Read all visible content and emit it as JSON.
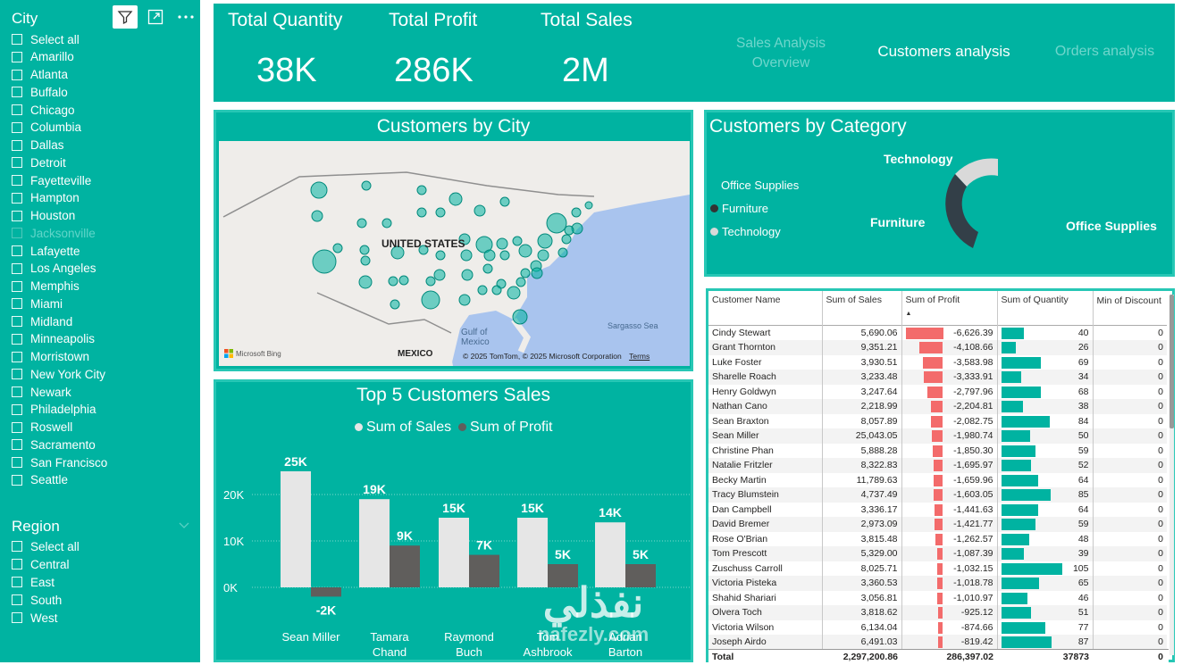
{
  "slicer_city": {
    "title": "City",
    "items": [
      "Select all",
      "Amarillo",
      "Atlanta",
      "Buffalo",
      "Chicago",
      "Columbia",
      "Dallas",
      "Detroit",
      "Fayetteville",
      "Hampton",
      "Houston",
      "Jacksonville",
      "Lafayette",
      "Los Angeles",
      "Memphis",
      "Miami",
      "Midland",
      "Minneapolis",
      "Morristown",
      "New York City",
      "Newark",
      "Philadelphia",
      "Roswell",
      "Sacramento",
      "San Francisco",
      "Seattle"
    ],
    "dimmed_item": "Jacksonville"
  },
  "slicer_region": {
    "title": "Region",
    "items": [
      "Select all",
      "Central",
      "East",
      "South",
      "West"
    ]
  },
  "kpis": [
    {
      "label": "Total Quantity",
      "value": "38K"
    },
    {
      "label": "Total Profit",
      "value": "286K"
    },
    {
      "label": "Total Sales",
      "value": "2M"
    }
  ],
  "nav": {
    "sales_overview_1": "Sales Analysis",
    "sales_overview_2": "Overview",
    "customers": "Customers analysis",
    "orders": "Orders analysis"
  },
  "map": {
    "title": "Customers by City",
    "country_label": "UNITED STATES",
    "mexico_label": "MEXICO",
    "gulf_label_1": "Gulf of",
    "gulf_label_2": "Mexico",
    "sargasso_label": "Sargasso Sea",
    "attribution": "© 2025 TomTom, © 2025 Microsoft Corporation",
    "terms": "Terms",
    "bing": "Microsoft Bing"
  },
  "donut": {
    "title": "Customers by Category",
    "legend": [
      "Office Supplies",
      "Furniture",
      "Technology"
    ],
    "labels": {
      "technology": "Technology",
      "furniture": "Furniture",
      "office": "Office Supplies"
    }
  },
  "colors": {
    "teal": "#00b3a1",
    "sales_bar": "#e6e6e6",
    "profit_bar": "#605e5c",
    "neg_bar": "#f36b6b"
  },
  "chart_data": {
    "type": "bar",
    "title": "Top 5 Customers Sales",
    "categories": [
      "Sean Miller",
      "Tamara Chand",
      "Raymond Buch",
      "Tom Ashbrook",
      "Adrian Barton"
    ],
    "category_lines": [
      [
        "Sean Miller"
      ],
      [
        "Tamara",
        "Chand"
      ],
      [
        "Raymond",
        "Buch"
      ],
      [
        "Tom",
        "Ashbrook"
      ],
      [
        "Adrian",
        "Barton"
      ]
    ],
    "series": [
      {
        "name": "Sum of Sales",
        "values": [
          25000,
          19000,
          15000,
          15000,
          14000
        ],
        "labels": [
          "25K",
          "19K",
          "15K",
          "15K",
          "14K"
        ]
      },
      {
        "name": "Sum of Profit",
        "values": [
          -2000,
          9000,
          7000,
          5000,
          5000
        ],
        "labels": [
          "-2K",
          "9K",
          "7K",
          "5K",
          "5K"
        ]
      }
    ],
    "yticks": [
      "20K",
      "10K",
      "0K"
    ],
    "ylim": [
      -2000,
      25000
    ]
  },
  "table": {
    "headers": [
      "Customer Name",
      "Sum of Sales",
      "Sum of Profit",
      "Sum of Quantity",
      "Min of Discount"
    ],
    "rows": [
      [
        "Cindy Stewart",
        "5,690.06",
        "-6,626.39",
        "40",
        "0"
      ],
      [
        "Grant Thornton",
        "9,351.21",
        "-4,108.66",
        "26",
        "0"
      ],
      [
        "Luke Foster",
        "3,930.51",
        "-3,583.98",
        "69",
        "0"
      ],
      [
        "Sharelle Roach",
        "3,233.48",
        "-3,333.91",
        "34",
        "0"
      ],
      [
        "Henry Goldwyn",
        "3,247.64",
        "-2,797.96",
        "68",
        "0"
      ],
      [
        "Nathan Cano",
        "2,218.99",
        "-2,204.81",
        "38",
        "0"
      ],
      [
        "Sean Braxton",
        "8,057.89",
        "-2,082.75",
        "84",
        "0"
      ],
      [
        "Sean Miller",
        "25,043.05",
        "-1,980.74",
        "50",
        "0"
      ],
      [
        "Christine Phan",
        "5,888.28",
        "-1,850.30",
        "59",
        "0"
      ],
      [
        "Natalie Fritzler",
        "8,322.83",
        "-1,695.97",
        "52",
        "0"
      ],
      [
        "Becky Martin",
        "11,789.63",
        "-1,659.96",
        "64",
        "0"
      ],
      [
        "Tracy Blumstein",
        "4,737.49",
        "-1,603.05",
        "85",
        "0"
      ],
      [
        "Dan Campbell",
        "3,336.17",
        "-1,441.63",
        "64",
        "0"
      ],
      [
        "David Bremer",
        "2,973.09",
        "-1,421.77",
        "59",
        "0"
      ],
      [
        "Rose O'Brian",
        "3,815.48",
        "-1,262.57",
        "48",
        "0"
      ],
      [
        "Tom Prescott",
        "5,329.00",
        "-1,087.39",
        "39",
        "0"
      ],
      [
        "Zuschuss Carroll",
        "8,025.71",
        "-1,032.15",
        "105",
        "0"
      ],
      [
        "Victoria Pisteka",
        "3,360.53",
        "-1,018.78",
        "65",
        "0"
      ],
      [
        "Shahid Shariari",
        "3,056.81",
        "-1,010.97",
        "46",
        "0"
      ],
      [
        "Olvera Toch",
        "3,818.62",
        "-925.12",
        "51",
        "0"
      ],
      [
        "Victoria Wilson",
        "6,134.04",
        "-874.66",
        "77",
        "0"
      ],
      [
        "Joseph Airdo",
        "6,491.03",
        "-819.42",
        "87",
        "0"
      ]
    ],
    "total": [
      "Total",
      "2,297,200.86",
      "286,397.02",
      "37873",
      "0"
    ],
    "profit_min": -6626.39,
    "quantity_max": 105
  },
  "watermark": {
    "arabic": "نفذلي",
    "latin": "nafezly.com"
  }
}
